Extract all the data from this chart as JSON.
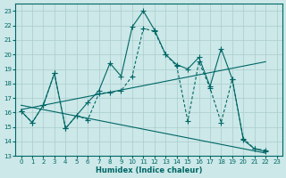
{
  "xlabel": "Humidex (Indice chaleur)",
  "background_color": "#cce8e8",
  "grid_color": "#aacccc",
  "line_color": "#006666",
  "xlim": [
    -0.5,
    23.5
  ],
  "ylim": [
    13,
    23.5
  ],
  "yticks": [
    13,
    14,
    15,
    16,
    17,
    18,
    19,
    20,
    21,
    22,
    23
  ],
  "xticks": [
    0,
    1,
    2,
    3,
    4,
    5,
    6,
    7,
    8,
    9,
    10,
    11,
    12,
    13,
    14,
    15,
    16,
    17,
    18,
    19,
    20,
    21,
    22,
    23
  ],
  "series1": [
    16.1,
    15.3,
    16.5,
    18.7,
    14.9,
    15.8,
    16.7,
    17.5,
    19.4,
    18.5,
    21.9,
    23.0,
    21.7,
    20.0,
    19.3,
    19.0,
    19.8,
    17.8,
    20.4,
    18.3,
    14.1,
    13.5,
    13.3
  ],
  "series2": [
    16.1,
    15.3,
    16.5,
    18.7,
    14.9,
    15.8,
    15.5,
    17.3,
    17.4,
    17.5,
    18.5,
    21.8,
    21.6,
    20.0,
    19.2,
    15.4,
    19.5,
    17.7,
    15.3,
    18.3,
    14.2,
    13.5,
    13.4
  ],
  "trend1": [
    16.2,
    16.35,
    16.5,
    16.65,
    16.8,
    16.95,
    17.1,
    17.25,
    17.4,
    17.55,
    17.7,
    17.85,
    18.0,
    18.15,
    18.3,
    18.45,
    18.6,
    18.75,
    18.9,
    19.05,
    19.2,
    19.35,
    19.5
  ],
  "trend2": [
    16.5,
    16.35,
    16.2,
    16.05,
    15.9,
    15.75,
    15.6,
    15.45,
    15.3,
    15.15,
    15.0,
    14.85,
    14.7,
    14.55,
    14.4,
    14.25,
    14.1,
    13.95,
    13.8,
    13.65,
    13.5,
    13.35,
    13.2
  ]
}
